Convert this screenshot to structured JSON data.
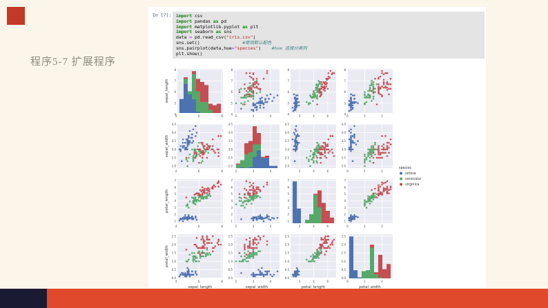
{
  "slide": {
    "title": "程序5-7 扩展程序",
    "colors": {
      "background": "#fbf6e9",
      "corner_accent": "#c23a24",
      "footer_navy": "#1a1b32",
      "footer_red": "#e0492c",
      "panel": "#ffffff"
    }
  },
  "notebook": {
    "prompt": "In [7]:",
    "code_lines": [
      [
        [
          "kw",
          "import"
        ],
        [
          "pl",
          " csv"
        ]
      ],
      [
        [
          "kw",
          "import"
        ],
        [
          "pl",
          " pandas "
        ],
        [
          "kw",
          "as"
        ],
        [
          "pl",
          " pd"
        ]
      ],
      [
        [
          "kw",
          "import"
        ],
        [
          "pl",
          " matplotlib.pyplot "
        ],
        [
          "kw",
          "as"
        ],
        [
          "pl",
          " plt"
        ]
      ],
      [
        [
          "kw",
          "import"
        ],
        [
          "pl",
          " seaborn "
        ],
        [
          "kw",
          "as"
        ],
        [
          "pl",
          " sns"
        ]
      ],
      [
        [
          "pl",
          "data "
        ],
        [
          "op",
          "="
        ],
        [
          "pl",
          " pd.read_csv("
        ],
        [
          "str",
          "\"iris.csv\""
        ],
        [
          "pl",
          ")"
        ]
      ],
      [
        [
          "pl",
          "sns.set()"
        ],
        [
          "pl",
          "                "
        ],
        [
          "cm",
          "#使用默认配色"
        ]
      ],
      [
        [
          "pl",
          "sns.pairplot(data,hue"
        ],
        [
          "op",
          "="
        ],
        [
          "str",
          "\"species\""
        ],
        [
          "pl",
          ")    "
        ],
        [
          "cm",
          "#hue 选择分类列"
        ]
      ],
      [
        [
          "pl",
          "plt.show()"
        ]
      ]
    ]
  },
  "chart_data": {
    "type": "scatter",
    "subtype": "pairplot-matrix-4x4",
    "variables": [
      "sepal_length",
      "sepal_width",
      "petal_length",
      "petal_width"
    ],
    "diagonal": "stacked-histogram",
    "grid": true,
    "figure_bg": "#ffffff",
    "panel_bg": "#eaeaf2",
    "gridline_color": "#ffffff",
    "axis_ranges": [
      [
        4.12,
        8.08
      ],
      [
        1.88,
        4.52
      ],
      [
        0.7,
        7.2
      ],
      [
        -0.02,
        2.62
      ]
    ],
    "x_ticks": [
      [
        "4",
        "6",
        "8"
      ],
      [
        "2",
        "3",
        "4"
      ],
      [
        "2",
        "4",
        "6"
      ],
      [
        "0",
        "1",
        "2"
      ]
    ],
    "y_ticks": [
      [
        "4",
        "5",
        "6",
        "7",
        "8"
      ],
      [
        "2.0",
        "2.5",
        "3.0",
        "3.5",
        "4.0",
        "4.5"
      ],
      [
        "1",
        "2",
        "3",
        "4",
        "5",
        "6",
        "7"
      ],
      [
        "0.0",
        "0.5",
        "1.0",
        "1.5",
        "2.0",
        "2.5"
      ]
    ],
    "legend": {
      "title": "species",
      "position": "middle-right",
      "entries": [
        {
          "label": "setosa",
          "color": "#4C72B0"
        },
        {
          "label": "versicolor",
          "color": "#55A868"
        },
        {
          "label": "virginica",
          "color": "#C44E52"
        }
      ]
    },
    "series": [
      {
        "name": "setosa",
        "color": "#4C72B0",
        "points": [
          [
            5.1,
            3.5,
            1.4,
            0.2
          ],
          [
            4.9,
            3.0,
            1.4,
            0.2
          ],
          [
            4.7,
            3.2,
            1.3,
            0.2
          ],
          [
            4.6,
            3.1,
            1.5,
            0.2
          ],
          [
            5.0,
            3.6,
            1.4,
            0.2
          ],
          [
            5.4,
            3.9,
            1.7,
            0.4
          ],
          [
            4.6,
            3.4,
            1.4,
            0.3
          ],
          [
            5.0,
            3.4,
            1.5,
            0.2
          ],
          [
            4.4,
            2.9,
            1.4,
            0.2
          ],
          [
            4.9,
            3.1,
            1.5,
            0.1
          ],
          [
            5.4,
            3.7,
            1.5,
            0.2
          ],
          [
            4.8,
            3.4,
            1.6,
            0.2
          ],
          [
            4.8,
            3.0,
            1.4,
            0.1
          ],
          [
            4.3,
            3.0,
            1.1,
            0.1
          ],
          [
            5.8,
            4.0,
            1.2,
            0.2
          ],
          [
            5.7,
            4.4,
            1.5,
            0.4
          ],
          [
            5.4,
            3.9,
            1.3,
            0.4
          ],
          [
            5.1,
            3.5,
            1.4,
            0.3
          ],
          [
            5.7,
            3.8,
            1.7,
            0.3
          ],
          [
            5.1,
            3.8,
            1.5,
            0.3
          ],
          [
            5.4,
            3.4,
            1.7,
            0.2
          ],
          [
            5.1,
            3.7,
            1.5,
            0.4
          ],
          [
            4.6,
            3.6,
            1.0,
            0.2
          ],
          [
            5.1,
            3.3,
            1.7,
            0.5
          ],
          [
            4.8,
            3.4,
            1.9,
            0.2
          ],
          [
            5.0,
            3.0,
            1.6,
            0.2
          ],
          [
            5.0,
            3.4,
            1.6,
            0.4
          ],
          [
            5.2,
            3.5,
            1.5,
            0.2
          ],
          [
            5.2,
            3.4,
            1.4,
            0.2
          ],
          [
            4.7,
            3.2,
            1.6,
            0.2
          ],
          [
            4.8,
            3.1,
            1.6,
            0.2
          ],
          [
            5.4,
            3.4,
            1.5,
            0.4
          ],
          [
            5.2,
            4.1,
            1.5,
            0.1
          ],
          [
            5.5,
            4.2,
            1.4,
            0.2
          ],
          [
            4.9,
            3.1,
            1.5,
            0.2
          ],
          [
            5.0,
            3.2,
            1.2,
            0.2
          ],
          [
            5.5,
            3.5,
            1.3,
            0.2
          ],
          [
            4.9,
            3.6,
            1.4,
            0.1
          ],
          [
            4.4,
            3.0,
            1.3,
            0.2
          ],
          [
            5.1,
            3.4,
            1.5,
            0.2
          ],
          [
            5.0,
            3.5,
            1.3,
            0.3
          ],
          [
            4.5,
            2.3,
            1.3,
            0.3
          ],
          [
            4.4,
            3.2,
            1.3,
            0.2
          ],
          [
            5.0,
            3.5,
            1.6,
            0.6
          ],
          [
            5.1,
            3.8,
            1.9,
            0.4
          ],
          [
            4.8,
            3.0,
            1.4,
            0.3
          ],
          [
            5.1,
            3.8,
            1.6,
            0.2
          ],
          [
            4.6,
            3.2,
            1.4,
            0.2
          ],
          [
            5.3,
            3.7,
            1.5,
            0.2
          ],
          [
            5.0,
            3.3,
            1.4,
            0.2
          ]
        ]
      },
      {
        "name": "versicolor",
        "color": "#55A868",
        "points": [
          [
            7.0,
            3.2,
            4.7,
            1.4
          ],
          [
            6.4,
            3.2,
            4.5,
            1.5
          ],
          [
            6.9,
            3.1,
            4.9,
            1.5
          ],
          [
            5.5,
            2.3,
            4.0,
            1.3
          ],
          [
            6.5,
            2.8,
            4.6,
            1.5
          ],
          [
            5.7,
            2.8,
            4.5,
            1.3
          ],
          [
            6.3,
            3.3,
            4.7,
            1.6
          ],
          [
            4.9,
            2.4,
            3.3,
            1.0
          ],
          [
            6.6,
            2.9,
            4.6,
            1.3
          ],
          [
            5.2,
            2.7,
            3.9,
            1.4
          ],
          [
            5.0,
            2.0,
            3.5,
            1.0
          ],
          [
            5.9,
            3.0,
            4.2,
            1.5
          ],
          [
            6.0,
            2.2,
            4.0,
            1.0
          ],
          [
            6.1,
            2.9,
            4.7,
            1.4
          ],
          [
            5.6,
            2.9,
            3.6,
            1.3
          ],
          [
            6.7,
            3.1,
            4.4,
            1.4
          ],
          [
            5.6,
            3.0,
            4.5,
            1.5
          ],
          [
            5.8,
            2.7,
            4.1,
            1.0
          ],
          [
            6.2,
            2.2,
            4.5,
            1.5
          ],
          [
            5.6,
            2.5,
            3.9,
            1.1
          ],
          [
            5.9,
            3.2,
            4.8,
            1.8
          ],
          [
            6.1,
            2.8,
            4.0,
            1.3
          ],
          [
            6.3,
            2.5,
            4.9,
            1.5
          ],
          [
            6.1,
            2.8,
            4.7,
            1.2
          ],
          [
            6.4,
            2.9,
            4.3,
            1.3
          ],
          [
            6.6,
            3.0,
            4.4,
            1.4
          ],
          [
            6.8,
            2.8,
            4.8,
            1.4
          ],
          [
            6.7,
            3.0,
            5.0,
            1.7
          ],
          [
            6.0,
            2.9,
            4.5,
            1.5
          ],
          [
            5.7,
            2.6,
            3.5,
            1.0
          ],
          [
            5.5,
            2.4,
            3.8,
            1.1
          ],
          [
            5.5,
            2.4,
            3.7,
            1.0
          ],
          [
            5.8,
            2.7,
            3.9,
            1.2
          ],
          [
            6.0,
            2.7,
            5.1,
            1.6
          ],
          [
            5.4,
            3.0,
            4.5,
            1.5
          ],
          [
            6.0,
            3.4,
            4.5,
            1.6
          ],
          [
            6.7,
            3.1,
            4.7,
            1.5
          ],
          [
            6.3,
            2.3,
            4.4,
            1.3
          ],
          [
            5.6,
            3.0,
            4.1,
            1.3
          ],
          [
            5.5,
            2.5,
            4.0,
            1.3
          ],
          [
            5.5,
            2.6,
            4.4,
            1.2
          ],
          [
            6.1,
            3.0,
            4.6,
            1.4
          ],
          [
            5.8,
            2.6,
            4.0,
            1.2
          ],
          [
            5.0,
            2.3,
            3.3,
            1.0
          ],
          [
            5.6,
            2.7,
            4.2,
            1.3
          ],
          [
            5.7,
            3.0,
            4.2,
            1.2
          ],
          [
            5.7,
            2.9,
            4.2,
            1.3
          ],
          [
            6.2,
            2.9,
            4.3,
            1.3
          ],
          [
            5.1,
            2.5,
            3.0,
            1.1
          ],
          [
            5.7,
            2.8,
            4.1,
            1.3
          ]
        ]
      },
      {
        "name": "virginica",
        "color": "#C44E52",
        "points": [
          [
            6.3,
            3.3,
            6.0,
            2.5
          ],
          [
            5.8,
            2.7,
            5.1,
            1.9
          ],
          [
            7.1,
            3.0,
            5.9,
            2.1
          ],
          [
            6.3,
            2.9,
            5.6,
            1.8
          ],
          [
            6.5,
            3.0,
            5.8,
            2.2
          ],
          [
            7.6,
            3.0,
            6.6,
            2.1
          ],
          [
            4.9,
            2.5,
            4.5,
            1.7
          ],
          [
            7.3,
            2.9,
            6.3,
            1.8
          ],
          [
            6.7,
            2.5,
            5.8,
            1.8
          ],
          [
            7.2,
            3.6,
            6.1,
            2.5
          ],
          [
            6.5,
            3.2,
            5.1,
            2.0
          ],
          [
            6.4,
            2.7,
            5.3,
            1.9
          ],
          [
            6.8,
            3.0,
            5.5,
            2.1
          ],
          [
            5.7,
            2.5,
            5.0,
            2.0
          ],
          [
            5.8,
            2.8,
            5.1,
            2.4
          ],
          [
            6.4,
            3.2,
            5.3,
            2.3
          ],
          [
            6.5,
            3.0,
            5.5,
            1.8
          ],
          [
            7.7,
            3.8,
            6.7,
            2.2
          ],
          [
            7.7,
            2.6,
            6.9,
            2.3
          ],
          [
            6.0,
            2.2,
            5.0,
            1.5
          ],
          [
            6.9,
            3.2,
            5.7,
            2.3
          ],
          [
            5.6,
            2.8,
            4.9,
            2.0
          ],
          [
            7.7,
            2.8,
            6.7,
            2.0
          ],
          [
            6.3,
            2.7,
            4.9,
            1.8
          ],
          [
            6.7,
            3.3,
            5.7,
            2.1
          ],
          [
            7.2,
            3.2,
            6.0,
            1.8
          ],
          [
            6.2,
            2.8,
            4.8,
            1.8
          ],
          [
            6.1,
            3.0,
            4.9,
            1.8
          ],
          [
            6.4,
            2.8,
            5.6,
            2.1
          ],
          [
            7.2,
            3.0,
            5.8,
            1.6
          ],
          [
            7.4,
            2.8,
            6.1,
            1.9
          ],
          [
            7.9,
            3.8,
            6.4,
            2.0
          ],
          [
            6.4,
            2.8,
            5.6,
            2.2
          ],
          [
            6.3,
            2.8,
            5.1,
            1.5
          ],
          [
            6.1,
            2.6,
            5.6,
            1.4
          ],
          [
            7.7,
            3.0,
            6.1,
            2.3
          ],
          [
            6.3,
            3.4,
            5.6,
            2.4
          ],
          [
            6.4,
            3.1,
            5.5,
            1.8
          ],
          [
            6.0,
            3.0,
            4.8,
            1.8
          ],
          [
            6.9,
            3.1,
            5.4,
            2.1
          ],
          [
            6.7,
            3.1,
            5.6,
            2.4
          ],
          [
            6.9,
            3.1,
            5.1,
            2.3
          ],
          [
            5.8,
            2.7,
            5.1,
            1.9
          ],
          [
            6.8,
            3.2,
            5.9,
            2.3
          ],
          [
            6.7,
            3.3,
            5.7,
            2.5
          ],
          [
            6.7,
            3.0,
            5.2,
            2.3
          ],
          [
            6.3,
            2.5,
            5.0,
            1.9
          ],
          [
            6.5,
            3.0,
            5.2,
            2.0
          ],
          [
            6.2,
            3.4,
            5.4,
            2.3
          ],
          [
            5.9,
            3.0,
            5.1,
            1.8
          ]
        ]
      }
    ]
  }
}
